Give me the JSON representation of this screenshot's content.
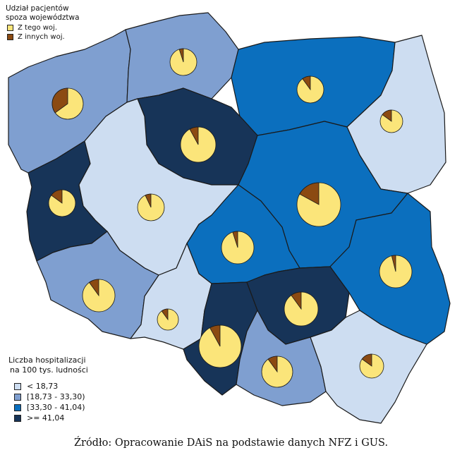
{
  "pie_legend": {
    "title_line1": "Udział pacjentów",
    "title_line2": "spoza województwa",
    "items": [
      {
        "label": "Z tego woj.",
        "color": "#fbe57a"
      },
      {
        "label": "Z innych woj.",
        "color": "#8b4a12"
      }
    ]
  },
  "choropleth_legend": {
    "title_line1": "Liczba hospitalizacji",
    "title_line2": "na 100 tys. ludności",
    "classes": [
      {
        "label": "< 18,73",
        "color": "#cdddf1"
      },
      {
        "label": "[18,73 - 33,30)",
        "color": "#7f9fd0"
      },
      {
        "label": "[33,30 - 41,04)",
        "color": "#0b6fbe"
      },
      {
        "label": ">= 41,04",
        "color": "#173458"
      }
    ]
  },
  "regions": [
    {
      "id": "zachodniopomorskie",
      "class": 1,
      "share_other": 0.35
    },
    {
      "id": "pomorskie",
      "class": 1,
      "share_other": 0.05
    },
    {
      "id": "warminsko-mazurskie",
      "class": 2,
      "share_other": 0.1
    },
    {
      "id": "podlaskie",
      "class": 0,
      "share_other": 0.15
    },
    {
      "id": "kujawsko-pomorskie",
      "class": 3,
      "share_other": 0.08
    },
    {
      "id": "lubuskie",
      "class": 3,
      "share_other": 0.15
    },
    {
      "id": "wielkopolskie",
      "class": 0,
      "share_other": 0.07
    },
    {
      "id": "mazowieckie",
      "class": 2,
      "share_other": 0.17
    },
    {
      "id": "lodzkie",
      "class": 2,
      "share_other": 0.05
    },
    {
      "id": "lubelskie",
      "class": 2,
      "share_other": 0.04
    },
    {
      "id": "dolnoslaskie",
      "class": 1,
      "share_other": 0.1
    },
    {
      "id": "opolskie",
      "class": 0,
      "share_other": 0.1
    },
    {
      "id": "slaskie",
      "class": 3,
      "share_other": 0.08
    },
    {
      "id": "swietokrzyskie",
      "class": 3,
      "share_other": 0.1
    },
    {
      "id": "malopolskie",
      "class": 1,
      "share_other": 0.1
    },
    {
      "id": "podkarpackie",
      "class": 0,
      "share_other": 0.15
    }
  ],
  "source": "Źródło: Opracowanie DAiS na podstawie danych NFZ i GUS."
}
